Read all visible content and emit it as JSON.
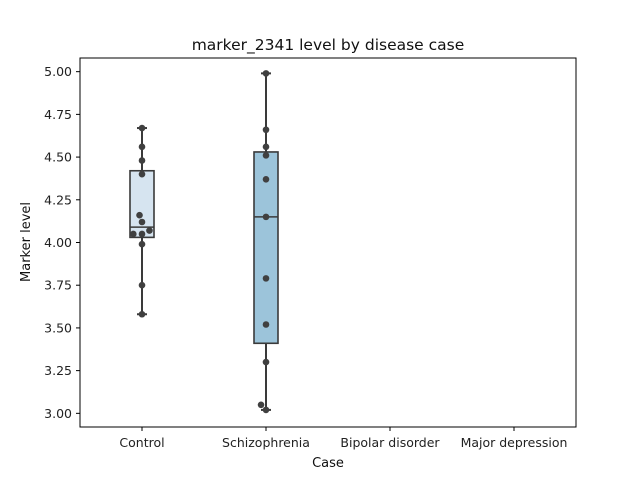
{
  "chart_data": {
    "type": "box",
    "title": "marker_2341 level by disease case",
    "xlabel": "Case",
    "ylabel": "Marker level",
    "categories": [
      "Control",
      "Schizophrenia",
      "Bipolar disorder",
      "Major depression"
    ],
    "ylim": [
      2.92,
      5.08
    ],
    "yticks": [
      3.0,
      3.25,
      3.5,
      3.75,
      4.0,
      4.25,
      4.5,
      4.75,
      5.0
    ],
    "yticks_labels": [
      "3.00",
      "3.25",
      "3.50",
      "3.75",
      "4.00",
      "4.25",
      "4.50",
      "4.75",
      "5.00"
    ],
    "grid": false,
    "boxes": [
      {
        "category": "Control",
        "whisker_low": 3.58,
        "q1": 4.03,
        "median": 4.09,
        "q3": 4.42,
        "whisker_high": 4.67,
        "color": "#d6e4f0"
      },
      {
        "category": "Schizophrenia",
        "whisker_low": 3.02,
        "q1": 3.41,
        "median": 4.15,
        "q3": 4.53,
        "whisker_high": 4.99,
        "color": "#9cc4da"
      },
      {
        "category": "Bipolar disorder",
        "empty": true
      },
      {
        "category": "Major depression",
        "empty": true
      }
    ],
    "points": [
      {
        "category": "Control",
        "jitter": 0.0,
        "y": 4.67
      },
      {
        "category": "Control",
        "jitter": 0.0,
        "y": 4.56
      },
      {
        "category": "Control",
        "jitter": 0.0,
        "y": 4.48
      },
      {
        "category": "Control",
        "jitter": 0.0,
        "y": 4.4
      },
      {
        "category": "Control",
        "jitter": -0.02,
        "y": 4.16
      },
      {
        "category": "Control",
        "jitter": 0.0,
        "y": 4.12
      },
      {
        "category": "Control",
        "jitter": 0.06,
        "y": 4.07
      },
      {
        "category": "Control",
        "jitter": -0.07,
        "y": 4.05
      },
      {
        "category": "Control",
        "jitter": 0.0,
        "y": 4.05
      },
      {
        "category": "Control",
        "jitter": 0.0,
        "y": 3.99
      },
      {
        "category": "Control",
        "jitter": 0.0,
        "y": 3.75
      },
      {
        "category": "Control",
        "jitter": 0.0,
        "y": 3.58
      },
      {
        "category": "Schizophrenia",
        "jitter": 0.0,
        "y": 4.99
      },
      {
        "category": "Schizophrenia",
        "jitter": 0.0,
        "y": 4.66
      },
      {
        "category": "Schizophrenia",
        "jitter": 0.0,
        "y": 4.56
      },
      {
        "category": "Schizophrenia",
        "jitter": 0.0,
        "y": 4.51
      },
      {
        "category": "Schizophrenia",
        "jitter": 0.0,
        "y": 4.37
      },
      {
        "category": "Schizophrenia",
        "jitter": 0.0,
        "y": 4.15
      },
      {
        "category": "Schizophrenia",
        "jitter": 0.0,
        "y": 3.79
      },
      {
        "category": "Schizophrenia",
        "jitter": 0.0,
        "y": 3.52
      },
      {
        "category": "Schizophrenia",
        "jitter": 0.0,
        "y": 3.3
      },
      {
        "category": "Schizophrenia",
        "jitter": -0.04,
        "y": 3.05
      },
      {
        "category": "Schizophrenia",
        "jitter": 0.0,
        "y": 3.02
      }
    ],
    "colors": {
      "line": "#3a3a3a",
      "point": "#404040",
      "axis": "#000000"
    }
  }
}
